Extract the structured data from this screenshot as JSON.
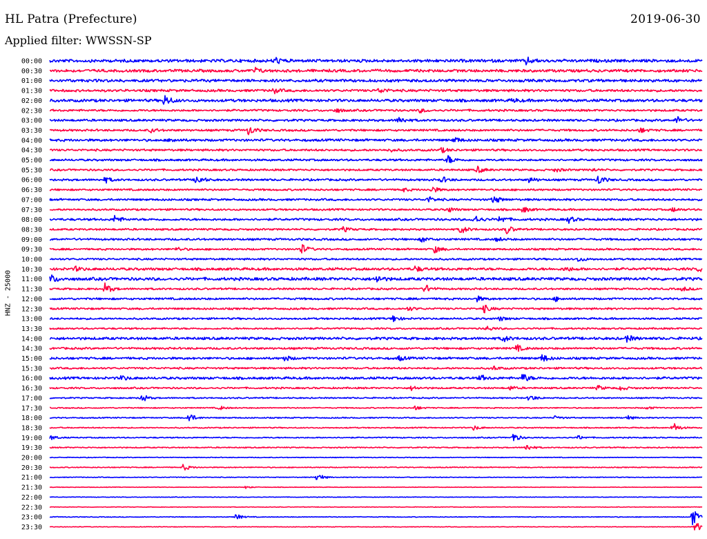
{
  "header": {
    "title": "HL Patra (Prefecture)",
    "date": "2019-06-30",
    "filter": "Applied filter: WWSSN-SP"
  },
  "chart_data": {
    "type": "line",
    "title": "HL Patra (Prefecture)",
    "date": "2019-06-30",
    "filter": "WWSSN-SP",
    "ylabel": "HNZ - 25000",
    "xlabel": "",
    "legend": "none",
    "grid": false,
    "series_colors": [
      "#0000ff",
      "#ff0040"
    ],
    "trace_minutes": 30,
    "rows": [
      {
        "label": "00:00",
        "noise": 0.32,
        "events": [
          {
            "t": 0.345,
            "amp": 0.9
          },
          {
            "t": 0.73,
            "amp": 0.9
          }
        ]
      },
      {
        "label": "00:30",
        "noise": 0.3,
        "events": [
          {
            "t": 0.315,
            "amp": 0.6
          }
        ]
      },
      {
        "label": "01:00",
        "noise": 0.3,
        "events": []
      },
      {
        "label": "01:30",
        "noise": 0.26,
        "events": [
          {
            "t": 0.342,
            "amp": 0.7
          },
          {
            "t": 0.505,
            "amp": 0.7
          }
        ]
      },
      {
        "label": "02:00",
        "noise": 0.3,
        "events": [
          {
            "t": 0.176,
            "amp": 1.4
          },
          {
            "t": 0.71,
            "amp": 0.4
          }
        ]
      },
      {
        "label": "02:30",
        "noise": 0.22,
        "events": [
          {
            "t": 0.438,
            "amp": 0.6
          },
          {
            "t": 0.568,
            "amp": 0.5
          }
        ]
      },
      {
        "label": "03:00",
        "noise": 0.24,
        "events": [
          {
            "t": 0.535,
            "amp": 0.9
          },
          {
            "t": 0.96,
            "amp": 1.0
          }
        ]
      },
      {
        "label": "03:30",
        "noise": 0.22,
        "events": [
          {
            "t": 0.155,
            "amp": 0.5
          },
          {
            "t": 0.305,
            "amp": 1.2
          },
          {
            "t": 0.905,
            "amp": 0.6
          }
        ]
      },
      {
        "label": "04:00",
        "noise": 0.26,
        "events": [
          {
            "t": 0.185,
            "amp": 0.6
          },
          {
            "t": 0.62,
            "amp": 0.7
          }
        ]
      },
      {
        "label": "04:30",
        "noise": 0.22,
        "events": [
          {
            "t": 0.52,
            "amp": 0.4
          },
          {
            "t": 0.6,
            "amp": 0.6
          }
        ]
      },
      {
        "label": "05:00",
        "noise": 0.22,
        "events": [
          {
            "t": 0.61,
            "amp": 1.1
          }
        ]
      },
      {
        "label": "05:30",
        "noise": 0.2,
        "events": [
          {
            "t": 0.655,
            "amp": 0.9
          },
          {
            "t": 0.775,
            "amp": 0.5
          },
          {
            "t": 0.83,
            "amp": 0.4
          }
        ]
      },
      {
        "label": "06:00",
        "noise": 0.22,
        "events": [
          {
            "t": 0.085,
            "amp": 0.7
          },
          {
            "t": 0.225,
            "amp": 1.3
          },
          {
            "t": 0.6,
            "amp": 0.8
          },
          {
            "t": 0.735,
            "amp": 0.7
          },
          {
            "t": 0.84,
            "amp": 1.3
          }
        ]
      },
      {
        "label": "06:30",
        "noise": 0.2,
        "events": [
          {
            "t": 0.54,
            "amp": 0.5
          },
          {
            "t": 0.585,
            "amp": 0.9
          }
        ]
      },
      {
        "label": "07:00",
        "noise": 0.22,
        "events": [
          {
            "t": 0.58,
            "amp": 0.7
          },
          {
            "t": 0.68,
            "amp": 1.1
          }
        ]
      },
      {
        "label": "07:30",
        "noise": 0.2,
        "events": [
          {
            "t": 0.61,
            "amp": 0.7
          },
          {
            "t": 0.725,
            "amp": 0.8
          },
          {
            "t": 0.955,
            "amp": 0.5
          }
        ]
      },
      {
        "label": "08:00",
        "noise": 0.24,
        "events": [
          {
            "t": 0.1,
            "amp": 1.0
          },
          {
            "t": 0.65,
            "amp": 1.2
          },
          {
            "t": 0.69,
            "amp": 1.0
          },
          {
            "t": 0.795,
            "amp": 0.8
          }
        ]
      },
      {
        "label": "08:30",
        "noise": 0.2,
        "events": [
          {
            "t": 0.45,
            "amp": 0.6
          },
          {
            "t": 0.63,
            "amp": 1.1
          },
          {
            "t": 0.7,
            "amp": 1.1
          }
        ]
      },
      {
        "label": "09:00",
        "noise": 0.22,
        "events": [
          {
            "t": 0.57,
            "amp": 0.7
          },
          {
            "t": 0.685,
            "amp": 0.5
          }
        ]
      },
      {
        "label": "09:30",
        "noise": 0.2,
        "events": [
          {
            "t": 0.195,
            "amp": 0.5
          },
          {
            "t": 0.385,
            "amp": 1.4
          },
          {
            "t": 0.59,
            "amp": 0.9
          }
        ]
      },
      {
        "label": "10:00",
        "noise": 0.2,
        "events": [
          {
            "t": 0.81,
            "amp": 0.6
          }
        ]
      },
      {
        "label": "10:30",
        "noise": 0.28,
        "events": [
          {
            "t": 0.04,
            "amp": 0.5
          },
          {
            "t": 0.56,
            "amp": 0.7
          },
          {
            "t": 0.79,
            "amp": 0.6
          },
          {
            "t": 0.995,
            "amp": 0.7
          }
        ]
      },
      {
        "label": "11:00",
        "noise": 0.32,
        "events": [
          {
            "t": 0.002,
            "amp": 1.0
          },
          {
            "t": 0.5,
            "amp": 1.0
          }
        ]
      },
      {
        "label": "11:30",
        "noise": 0.2,
        "events": [
          {
            "t": 0.085,
            "amp": 1.4
          },
          {
            "t": 0.575,
            "amp": 1.1
          },
          {
            "t": 0.97,
            "amp": 0.5
          }
        ]
      },
      {
        "label": "12:00",
        "noise": 0.22,
        "events": [
          {
            "t": 0.655,
            "amp": 0.6
          },
          {
            "t": 0.775,
            "amp": 0.5
          }
        ]
      },
      {
        "label": "12:30",
        "noise": 0.2,
        "events": [
          {
            "t": 0.55,
            "amp": 0.5
          },
          {
            "t": 0.665,
            "amp": 1.0
          }
        ]
      },
      {
        "label": "13:00",
        "noise": 0.2,
        "events": [
          {
            "t": 0.525,
            "amp": 0.9
          },
          {
            "t": 0.69,
            "amp": 0.5
          }
        ]
      },
      {
        "label": "13:30",
        "noise": 0.18,
        "events": [
          {
            "t": 0.67,
            "amp": 0.6
          }
        ]
      },
      {
        "label": "14:00",
        "noise": 0.28,
        "events": [
          {
            "t": 0.695,
            "amp": 0.8
          },
          {
            "t": 0.885,
            "amp": 0.8
          }
        ]
      },
      {
        "label": "14:30",
        "noise": 0.22,
        "events": [
          {
            "t": 0.715,
            "amp": 0.9
          }
        ]
      },
      {
        "label": "15:00",
        "noise": 0.24,
        "events": [
          {
            "t": 0.36,
            "amp": 0.7
          },
          {
            "t": 0.535,
            "amp": 0.6
          },
          {
            "t": 0.755,
            "amp": 1.0
          }
        ]
      },
      {
        "label": "15:30",
        "noise": 0.2,
        "events": [
          {
            "t": 0.68,
            "amp": 0.5
          }
        ]
      },
      {
        "label": "16:00",
        "noise": 0.26,
        "events": [
          {
            "t": 0.11,
            "amp": 0.6
          },
          {
            "t": 0.66,
            "amp": 0.7
          },
          {
            "t": 0.725,
            "amp": 1.1
          }
        ]
      },
      {
        "label": "16:30",
        "noise": 0.18,
        "events": [
          {
            "t": 0.555,
            "amp": 0.6
          },
          {
            "t": 0.705,
            "amp": 0.5
          },
          {
            "t": 0.84,
            "amp": 0.6
          },
          {
            "t": 0.875,
            "amp": 0.6
          }
        ]
      },
      {
        "label": "17:00",
        "noise": 0.14,
        "events": [
          {
            "t": 0.14,
            "amp": 1.2
          },
          {
            "t": 0.735,
            "amp": 0.9
          }
        ]
      },
      {
        "label": "17:30",
        "noise": 0.12,
        "events": [
          {
            "t": 0.26,
            "amp": 0.5
          },
          {
            "t": 0.56,
            "amp": 0.5
          },
          {
            "t": 0.915,
            "amp": 0.4
          }
        ]
      },
      {
        "label": "18:00",
        "noise": 0.12,
        "events": [
          {
            "t": 0.212,
            "amp": 1.4
          },
          {
            "t": 0.775,
            "amp": 0.5
          },
          {
            "t": 0.885,
            "amp": 0.6
          }
        ]
      },
      {
        "label": "18:30",
        "noise": 0.12,
        "events": [
          {
            "t": 0.65,
            "amp": 0.6
          },
          {
            "t": 0.955,
            "amp": 1.4
          }
        ]
      },
      {
        "label": "19:00",
        "noise": 0.12,
        "events": [
          {
            "t": 0.002,
            "amp": 0.6
          },
          {
            "t": 0.71,
            "amp": 1.2
          },
          {
            "t": 0.81,
            "amp": 0.5
          }
        ]
      },
      {
        "label": "19:30",
        "noise": 0.12,
        "events": [
          {
            "t": 0.73,
            "amp": 0.9
          }
        ]
      },
      {
        "label": "20:00",
        "noise": 0.08,
        "events": []
      },
      {
        "label": "20:30",
        "noise": 0.1,
        "events": [
          {
            "t": 0.205,
            "amp": 0.9
          }
        ]
      },
      {
        "label": "21:00",
        "noise": 0.08,
        "events": [
          {
            "t": 0.41,
            "amp": 1.2
          }
        ]
      },
      {
        "label": "21:30",
        "noise": 0.06,
        "events": [
          {
            "t": 0.3,
            "amp": 0.3
          }
        ]
      },
      {
        "label": "22:00",
        "noise": 0.06,
        "events": []
      },
      {
        "label": "22:30",
        "noise": 0.06,
        "events": []
      },
      {
        "label": "23:00",
        "noise": 0.08,
        "events": [
          {
            "t": 0.285,
            "amp": 0.8
          },
          {
            "t": 0.985,
            "amp": 2.2
          }
        ]
      },
      {
        "label": "23:30",
        "noise": 0.06,
        "events": [
          {
            "t": 0.99,
            "amp": 1.4
          }
        ]
      }
    ]
  }
}
